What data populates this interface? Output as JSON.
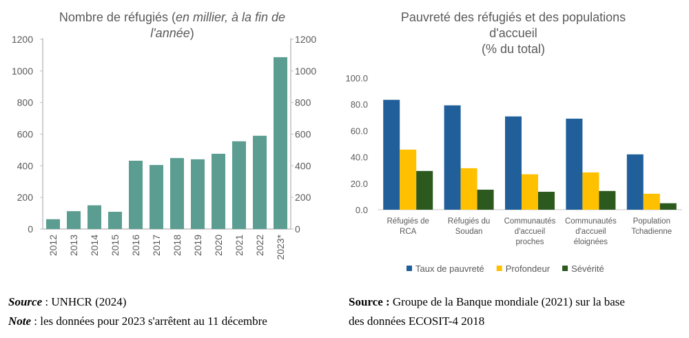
{
  "chart_data": [
    {
      "type": "bar",
      "title_main": "Nombre de réfugiés (",
      "title_italic": "en millier, à la fin de l'année",
      "title_end": ")",
      "categories": [
        "2012",
        "2013",
        "2014",
        "2015",
        "2016",
        "2017",
        "2018",
        "2019",
        "2020",
        "2021",
        "2022",
        "2023*"
      ],
      "values": [
        62,
        113,
        150,
        109,
        432,
        405,
        449,
        441,
        476,
        555,
        590,
        1087
      ],
      "ylim": [
        0,
        1200
      ],
      "yticks": [
        "0",
        "200",
        "400",
        "600",
        "800",
        "1000",
        "1200"
      ],
      "secondary_axis": true,
      "grid": false,
      "color": "#5b9e91"
    },
    {
      "type": "bar",
      "title_lines": [
        "Pauvreté des réfugiés et des populations",
        "d'accueil",
        "(% du total)"
      ],
      "categories": [
        [
          "Réfugiés de",
          "RCA"
        ],
        [
          "Réfugiés du",
          "Soudan"
        ],
        [
          "Communautés",
          "d'accueil",
          "proches"
        ],
        [
          "Communautés",
          "d'accueil",
          "éloignées"
        ],
        [
          "Population",
          "Tchadienne"
        ]
      ],
      "series": [
        {
          "name": "Taux de pauvreté",
          "values": [
            83.4,
            79.2,
            70.8,
            69.1,
            42.0
          ],
          "color": "#215f9a"
        },
        {
          "name": "Profondeur",
          "values": [
            45.6,
            31.5,
            26.9,
            28.3,
            12.1
          ],
          "color": "#ffc000"
        },
        {
          "name": "Sévérité",
          "values": [
            29.4,
            15.2,
            13.6,
            14.2,
            4.9
          ],
          "color": "#2c5a1e"
        }
      ],
      "ylim": [
        0,
        100
      ],
      "yticks": [
        "0.0",
        "20.0",
        "40.0",
        "60.0",
        "80.0",
        "100.0"
      ],
      "grid": false,
      "legend": "bottom"
    }
  ],
  "footer": {
    "left_source_label": "Source",
    "left_source_text": " : UNHCR (2024)",
    "left_note_label": "Note",
    "left_note_text": " : les données pour 2023 s'arrêtent au 11 décembre",
    "right_source_label": "Source :",
    "right_source_text": " Groupe de la Banque mondiale (2021) sur la base",
    "right_source_text2": "des données ECOSIT-4 2018"
  }
}
